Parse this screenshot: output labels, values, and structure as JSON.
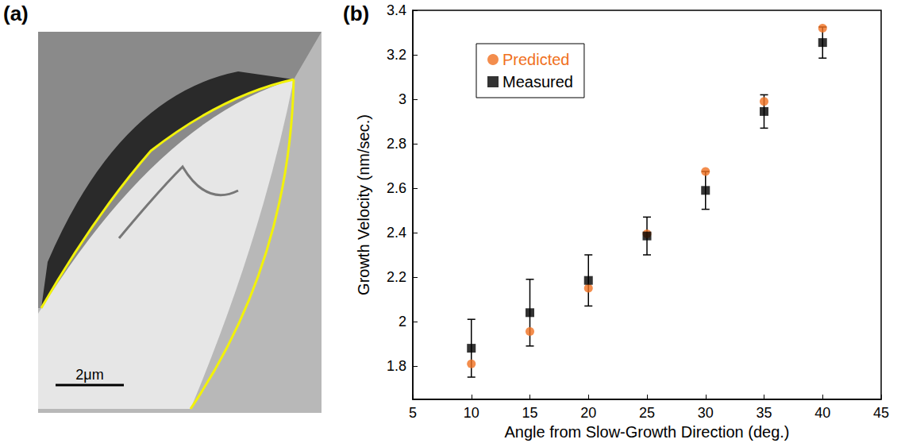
{
  "panel_labels": [
    "(a)",
    "(b)"
  ],
  "image_panel": {
    "scale_bar": "2μm"
  },
  "chart_data": {
    "type": "scatter",
    "x_label": "Angle from Slow-Growth Direction (deg.)",
    "y_label": "Growth Velocity (nm/sec.)",
    "x": [
      10,
      15,
      20,
      25,
      30,
      35,
      40
    ],
    "series": [
      {
        "name": "Predicted",
        "color": "#f07020",
        "marker": "circle",
        "values": [
          1.81,
          1.955,
          2.15,
          2.395,
          2.675,
          2.99,
          3.32
        ]
      },
      {
        "name": "Measured",
        "color": "#000000",
        "marker": "square",
        "values": [
          1.88,
          2.04,
          2.185,
          2.385,
          2.59,
          2.945,
          3.255
        ],
        "errors": [
          0.13,
          0.15,
          0.115,
          0.085,
          0.085,
          0.075,
          0.07
        ]
      }
    ],
    "xlim": [
      5,
      45
    ],
    "xticks": [
      5,
      10,
      15,
      20,
      25,
      30,
      35,
      40,
      45
    ],
    "ylim": [
      1.65,
      3.4
    ],
    "yticks": [
      1.8,
      2,
      2.2,
      2.4,
      2.6,
      2.8,
      3,
      3.2,
      3.4
    ],
    "grid": false,
    "legend": "top-left"
  }
}
